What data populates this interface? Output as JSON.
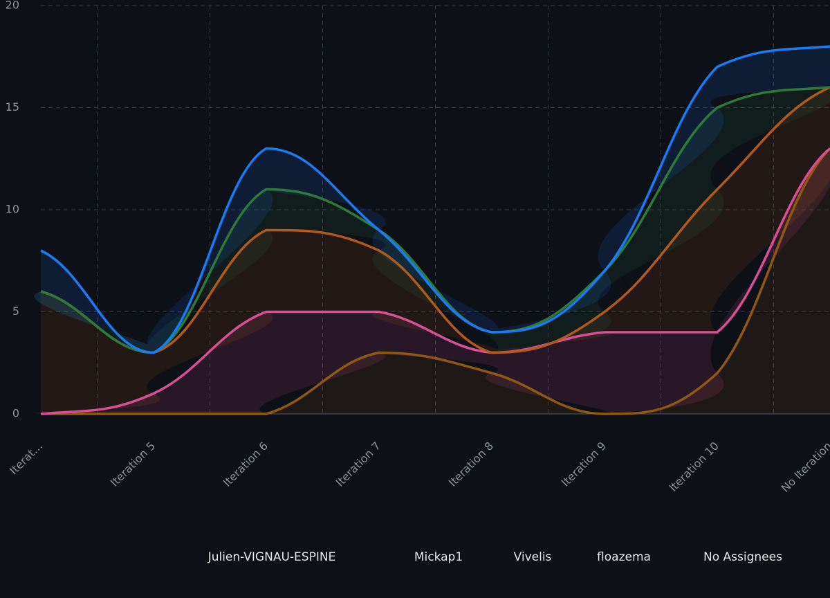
{
  "chart_data": {
    "type": "stacked-area",
    "categories": [
      "Iterat...",
      "Iteration 5",
      "Iteration 6",
      "Iteration 7",
      "Iteration 8",
      "Iteration 9",
      "Iteration 10",
      "No Iteration"
    ],
    "series": [
      {
        "name": "Julien-VIGNAU-ESPINE",
        "color": "#1a7cf5",
        "values": [
          2,
          0,
          2,
          0,
          0,
          0,
          2,
          2
        ]
      },
      {
        "name": "Mickap1",
        "color": "#2e7a3a",
        "values": [
          0,
          0,
          2,
          1,
          1,
          2,
          4,
          0
        ]
      },
      {
        "name": "Vivelis",
        "color": "#b35a1a",
        "values": [
          6,
          2,
          4,
          3,
          0,
          1,
          7,
          3
        ]
      },
      {
        "name": "floazema",
        "color": "#d94f95",
        "values": [
          0,
          1,
          5,
          2,
          1,
          4,
          2,
          0
        ]
      },
      {
        "name": "No Assignees",
        "color": "#8f5a10",
        "values": [
          0,
          0,
          0,
          3,
          2,
          0,
          2,
          13
        ]
      }
    ],
    "ylim": [
      0,
      20
    ],
    "yticks": [
      0,
      5,
      10,
      15,
      20
    ],
    "grid": true,
    "legend": "bottom"
  }
}
